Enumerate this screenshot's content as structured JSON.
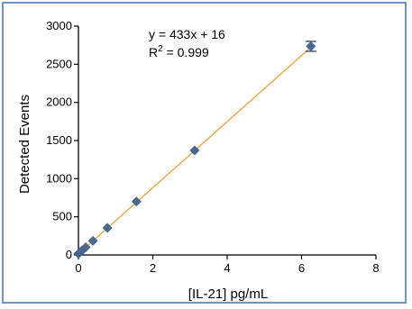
{
  "chart_data": {
    "type": "scatter",
    "xlabel": "[IL-21] pg/mL",
    "ylabel": "Detected  Events",
    "xlim": [
      0,
      8
    ],
    "ylim": [
      0,
      3000
    ],
    "x_ticks": [
      0,
      2,
      4,
      6,
      8
    ],
    "y_ticks": [
      0,
      500,
      1000,
      1500,
      2000,
      2500,
      3000
    ],
    "grid": false,
    "series": [
      {
        "x": [
          0.0,
          0.024,
          0.049,
          0.098,
          0.195,
          0.39,
          0.78,
          1.56,
          3.125,
          6.25
        ],
        "y": [
          16,
          26,
          37,
          58,
          100,
          185,
          355,
          700,
          1370,
          2735
        ],
        "error": [
          0,
          0,
          0,
          0,
          0,
          0,
          0,
          0,
          0,
          65
        ],
        "marker_color": "#4a6a94"
      }
    ],
    "fit": {
      "slope": 433,
      "intercept": 16,
      "equation": "y = 433x + 16",
      "r2_prefix": "R",
      "r2_exp": "2",
      "r2_suffix": " = 0.999",
      "color": "#e8a33d"
    }
  }
}
